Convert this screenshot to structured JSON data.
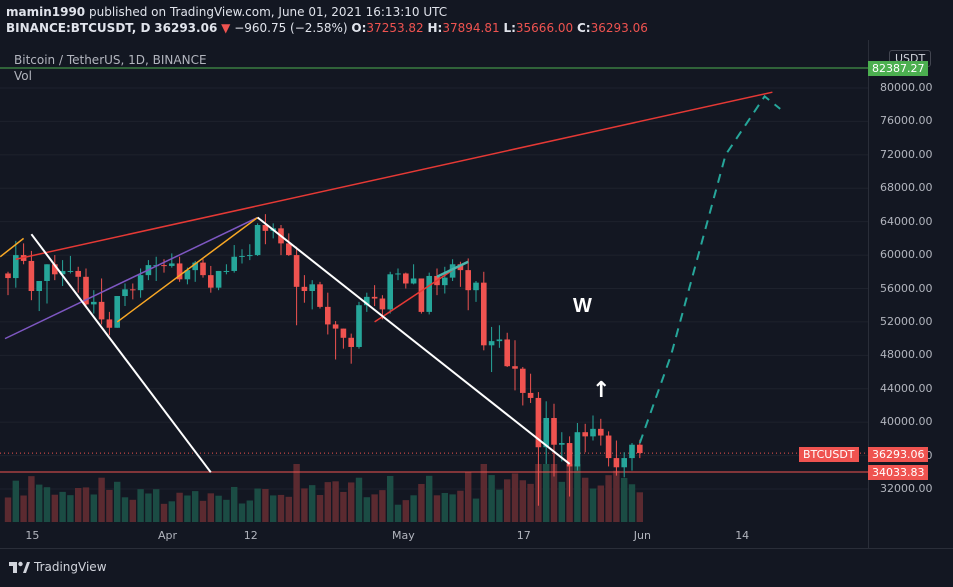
{
  "header": {
    "author": "mamin1990",
    "published_text": "published on TradingView.com, June 01, 2021 16:13:10 UTC",
    "symbol_line": "BINANCE:BTCUSDT, D",
    "last": "36293.06",
    "arrow": "▼",
    "change": "−960.75 (−2.58%)",
    "open_label": "O:",
    "open": "37253.82",
    "high_label": "H:",
    "high": "37894.81",
    "low_label": "L:",
    "low": "35666.00",
    "close_label": "C:",
    "close": "36293.06"
  },
  "pane": {
    "symbol_title": "Bitcoin / TetherUS, 1D, BINANCE",
    "volume_label": "Vol"
  },
  "currency_badge": "USDT",
  "price_badges": {
    "top": "82387.27",
    "current_name": "BTCUSDT",
    "current": "36293.06",
    "support": "34033.83"
  },
  "annotations": {
    "w_text": "W",
    "arrow_text": "↑"
  },
  "footer": {
    "brand": "TradingView"
  },
  "colors": {
    "background": "#131722",
    "up": "#26a69a",
    "down": "#ef5350",
    "trendline": "#e53935",
    "wedge": "#ffffff",
    "fan": "#7e57c2",
    "channel": "#f9a825",
    "projection": "#26a69a",
    "green_level": "#4caf50"
  },
  "chart_data": {
    "type": "candlestick",
    "title": "Bitcoin / TetherUS, 1D, BINANCE",
    "y_ticks": [
      32000,
      36000,
      40000,
      44000,
      48000,
      52000,
      56000,
      60000,
      64000,
      68000,
      72000,
      76000,
      80000
    ],
    "y_tick_labels": [
      "32000.00",
      "36000.00",
      "40000.00",
      "44000.00",
      "48000.00",
      "52000.00",
      "56000.00",
      "60000.00",
      "64000.00",
      "68000.00",
      "72000.00",
      "76000.00",
      "80000.00"
    ],
    "ylim": [
      26000,
      84500
    ],
    "x_ticks": [
      "15",
      "Apr",
      "12",
      "May",
      "17",
      "Jun",
      "14"
    ],
    "horizontal_levels": [
      {
        "value": 82387.27,
        "color": "green"
      },
      {
        "value": 36293.06,
        "color": "red",
        "style": "dotted"
      },
      {
        "value": 34033.83,
        "color": "red"
      }
    ],
    "candles": [
      {
        "date": "2021-03-12",
        "o": 57800,
        "h": 58000,
        "l": 55200,
        "c": 57250
      },
      {
        "date": "2021-03-13",
        "o": 57250,
        "h": 61700,
        "l": 56100,
        "c": 60000
      },
      {
        "date": "2021-03-14",
        "o": 60000,
        "h": 61400,
        "l": 58900,
        "c": 59300
      },
      {
        "date": "2021-03-15",
        "o": 59300,
        "h": 60500,
        "l": 54600,
        "c": 55700
      },
      {
        "date": "2021-03-16",
        "o": 55700,
        "h": 56900,
        "l": 53300,
        "c": 56900
      },
      {
        "date": "2021-03-17",
        "o": 56900,
        "h": 58900,
        "l": 54200,
        "c": 58900
      },
      {
        "date": "2021-03-18",
        "o": 58900,
        "h": 60000,
        "l": 57000,
        "c": 57700
      },
      {
        "date": "2021-03-19",
        "o": 57700,
        "h": 59400,
        "l": 56300,
        "c": 58100
      },
      {
        "date": "2021-03-20",
        "o": 58100,
        "h": 59900,
        "l": 57800,
        "c": 58100
      },
      {
        "date": "2021-03-21",
        "o": 58100,
        "h": 58600,
        "l": 55500,
        "c": 57400
      },
      {
        "date": "2021-03-22",
        "o": 57400,
        "h": 58400,
        "l": 53700,
        "c": 54100
      },
      {
        "date": "2021-03-23",
        "o": 54100,
        "h": 55800,
        "l": 53000,
        "c": 54400
      },
      {
        "date": "2021-03-24",
        "o": 54400,
        "h": 57200,
        "l": 51700,
        "c": 52300
      },
      {
        "date": "2021-03-25",
        "o": 52300,
        "h": 53200,
        "l": 50400,
        "c": 51300
      },
      {
        "date": "2021-03-26",
        "o": 51300,
        "h": 55100,
        "l": 51300,
        "c": 55100
      },
      {
        "date": "2021-03-27",
        "o": 55100,
        "h": 56600,
        "l": 53900,
        "c": 55900
      },
      {
        "date": "2021-03-28",
        "o": 55900,
        "h": 56600,
        "l": 54700,
        "c": 55800
      },
      {
        "date": "2021-03-29",
        "o": 55800,
        "h": 58400,
        "l": 54900,
        "c": 57600
      },
      {
        "date": "2021-03-30",
        "o": 57600,
        "h": 59400,
        "l": 57000,
        "c": 58800
      },
      {
        "date": "2021-03-31",
        "o": 58800,
        "h": 59800,
        "l": 56900,
        "c": 58800
      },
      {
        "date": "2021-04-01",
        "o": 58800,
        "h": 59500,
        "l": 57900,
        "c": 58700
      },
      {
        "date": "2021-04-02",
        "o": 58700,
        "h": 60200,
        "l": 58500,
        "c": 59000
      },
      {
        "date": "2021-04-03",
        "o": 59000,
        "h": 59800,
        "l": 56800,
        "c": 57100
      },
      {
        "date": "2021-04-04",
        "o": 57100,
        "h": 58500,
        "l": 56500,
        "c": 58200
      },
      {
        "date": "2021-04-05",
        "o": 58200,
        "h": 59300,
        "l": 56800,
        "c": 59100
      },
      {
        "date": "2021-04-06",
        "o": 59100,
        "h": 59500,
        "l": 57300,
        "c": 57600
      },
      {
        "date": "2021-04-07",
        "o": 57600,
        "h": 58700,
        "l": 55500,
        "c": 56100
      },
      {
        "date": "2021-04-08",
        "o": 56100,
        "h": 58100,
        "l": 55800,
        "c": 58100
      },
      {
        "date": "2021-04-09",
        "o": 58100,
        "h": 58900,
        "l": 57700,
        "c": 58100
      },
      {
        "date": "2021-04-10",
        "o": 58100,
        "h": 61200,
        "l": 57900,
        "c": 59800
      },
      {
        "date": "2021-04-11",
        "o": 59800,
        "h": 60700,
        "l": 59000,
        "c": 59900
      },
      {
        "date": "2021-04-12",
        "o": 59900,
        "h": 61300,
        "l": 59400,
        "c": 60000
      },
      {
        "date": "2021-04-13",
        "o": 60000,
        "h": 63800,
        "l": 59900,
        "c": 63600
      },
      {
        "date": "2021-04-14",
        "o": 63600,
        "h": 64900,
        "l": 61300,
        "c": 62900
      },
      {
        "date": "2021-04-15",
        "o": 62900,
        "h": 63800,
        "l": 62000,
        "c": 63200
      },
      {
        "date": "2021-04-16",
        "o": 63200,
        "h": 63600,
        "l": 60000,
        "c": 61400
      },
      {
        "date": "2021-04-17",
        "o": 61400,
        "h": 62600,
        "l": 59900,
        "c": 60000
      },
      {
        "date": "2021-04-18",
        "o": 60000,
        "h": 61000,
        "l": 51600,
        "c": 56200
      },
      {
        "date": "2021-04-19",
        "o": 56200,
        "h": 57600,
        "l": 54300,
        "c": 55700
      },
      {
        "date": "2021-04-20",
        "o": 55700,
        "h": 57000,
        "l": 53500,
        "c": 56500
      },
      {
        "date": "2021-04-21",
        "o": 56500,
        "h": 56800,
        "l": 53600,
        "c": 53800
      },
      {
        "date": "2021-04-22",
        "o": 53800,
        "h": 55500,
        "l": 50500,
        "c": 51700
      },
      {
        "date": "2021-04-23",
        "o": 51700,
        "h": 52100,
        "l": 47500,
        "c": 51200
      },
      {
        "date": "2021-04-24",
        "o": 51200,
        "h": 51200,
        "l": 48800,
        "c": 50100
      },
      {
        "date": "2021-04-25",
        "o": 50100,
        "h": 50600,
        "l": 47000,
        "c": 49000
      },
      {
        "date": "2021-04-26",
        "o": 49000,
        "h": 54400,
        "l": 48800,
        "c": 54000
      },
      {
        "date": "2021-04-27",
        "o": 54000,
        "h": 55500,
        "l": 53200,
        "c": 55000
      },
      {
        "date": "2021-04-28",
        "o": 55000,
        "h": 56400,
        "l": 53900,
        "c": 54800
      },
      {
        "date": "2021-04-29",
        "o": 54800,
        "h": 55200,
        "l": 52300,
        "c": 53500
      },
      {
        "date": "2021-04-30",
        "o": 53500,
        "h": 58000,
        "l": 53000,
        "c": 57700
      },
      {
        "date": "2021-05-01",
        "o": 57700,
        "h": 58400,
        "l": 57000,
        "c": 57800
      },
      {
        "date": "2021-05-02",
        "o": 57800,
        "h": 57900,
        "l": 56000,
        "c": 56600
      },
      {
        "date": "2021-05-03",
        "o": 56600,
        "h": 58900,
        "l": 56500,
        "c": 57200
      },
      {
        "date": "2021-05-04",
        "o": 57200,
        "h": 57200,
        "l": 53000,
        "c": 53200
      },
      {
        "date": "2021-05-05",
        "o": 53200,
        "h": 57900,
        "l": 52900,
        "c": 57500
      },
      {
        "date": "2021-05-06",
        "o": 57500,
        "h": 58400,
        "l": 55200,
        "c": 56400
      },
      {
        "date": "2021-05-07",
        "o": 56400,
        "h": 58600,
        "l": 55400,
        "c": 57300
      },
      {
        "date": "2021-05-08",
        "o": 57300,
        "h": 59500,
        "l": 56900,
        "c": 58900
      },
      {
        "date": "2021-05-09",
        "o": 58900,
        "h": 59200,
        "l": 56200,
        "c": 58200
      },
      {
        "date": "2021-05-10",
        "o": 58200,
        "h": 59600,
        "l": 53400,
        "c": 55800
      },
      {
        "date": "2021-05-11",
        "o": 55800,
        "h": 56900,
        "l": 54400,
        "c": 56700
      },
      {
        "date": "2021-05-12",
        "o": 56700,
        "h": 58000,
        "l": 48600,
        "c": 49200
      },
      {
        "date": "2021-05-13",
        "o": 49200,
        "h": 51400,
        "l": 46000,
        "c": 49700
      },
      {
        "date": "2021-05-14",
        "o": 49700,
        "h": 51600,
        "l": 48900,
        "c": 49900
      },
      {
        "date": "2021-05-15",
        "o": 49900,
        "h": 50700,
        "l": 46600,
        "c": 46700
      },
      {
        "date": "2021-05-16",
        "o": 46700,
        "h": 49800,
        "l": 43800,
        "c": 46400
      },
      {
        "date": "2021-05-17",
        "o": 46400,
        "h": 46600,
        "l": 42000,
        "c": 43500
      },
      {
        "date": "2021-05-18",
        "o": 43500,
        "h": 45800,
        "l": 42300,
        "c": 42900
      },
      {
        "date": "2021-05-19",
        "o": 42900,
        "h": 43600,
        "l": 30000,
        "c": 37000
      },
      {
        "date": "2021-05-20",
        "o": 37000,
        "h": 42500,
        "l": 35000,
        "c": 40500
      },
      {
        "date": "2021-05-21",
        "o": 40500,
        "h": 42200,
        "l": 33500,
        "c": 37300
      },
      {
        "date": "2021-05-22",
        "o": 37300,
        "h": 38800,
        "l": 35300,
        "c": 37500
      },
      {
        "date": "2021-05-23",
        "o": 37500,
        "h": 38300,
        "l": 31100,
        "c": 34700
      },
      {
        "date": "2021-05-24",
        "o": 34700,
        "h": 39900,
        "l": 34200,
        "c": 38800
      },
      {
        "date": "2021-05-25",
        "o": 38800,
        "h": 39800,
        "l": 36400,
        "c": 38300
      },
      {
        "date": "2021-05-26",
        "o": 38300,
        "h": 40800,
        "l": 37800,
        "c": 39200
      },
      {
        "date": "2021-05-27",
        "o": 39200,
        "h": 40400,
        "l": 37200,
        "c": 38400
      },
      {
        "date": "2021-05-28",
        "o": 38400,
        "h": 38900,
        "l": 34700,
        "c": 35700
      },
      {
        "date": "2021-05-29",
        "o": 35700,
        "h": 37800,
        "l": 33600,
        "c": 34600
      },
      {
        "date": "2021-05-30",
        "o": 34600,
        "h": 36400,
        "l": 33400,
        "c": 35700
      },
      {
        "date": "2021-05-31",
        "o": 35700,
        "h": 37500,
        "l": 34200,
        "c": 37300
      },
      {
        "date": "2021-06-01",
        "o": 37300,
        "h": 37900,
        "l": 35700,
        "c": 36300
      }
    ]
  }
}
